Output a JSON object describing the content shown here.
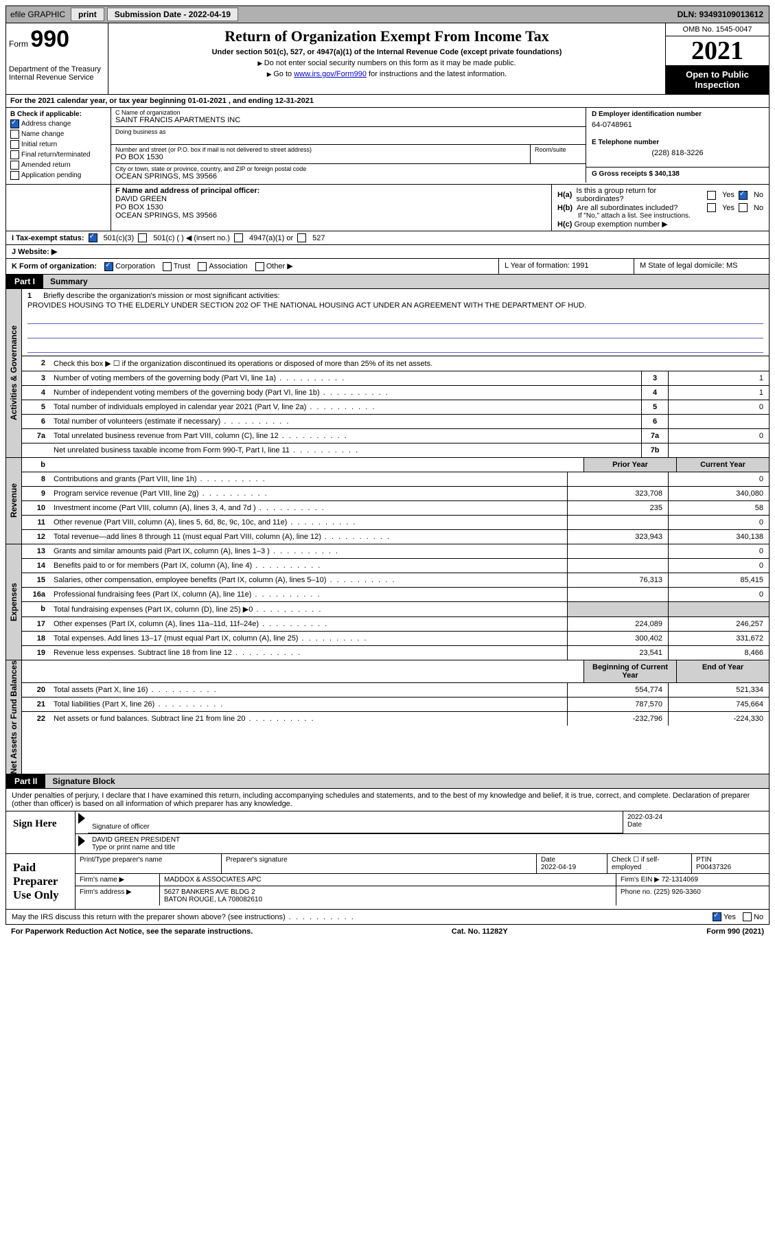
{
  "toolbar": {
    "efile_label": "efile GRAPHIC",
    "print_btn": "print",
    "submission_label": "Submission Date - 2022-04-19",
    "dln": "DLN: 93493109013612"
  },
  "header": {
    "form_word": "Form",
    "form_number": "990",
    "dept": "Department of the Treasury",
    "irs": "Internal Revenue Service",
    "title": "Return of Organization Exempt From Income Tax",
    "subtitle": "Under section 501(c), 527, or 4947(a)(1) of the Internal Revenue Code (except private foundations)",
    "note1": "Do not enter social security numbers on this form as it may be made public.",
    "note2_pre": "Go to ",
    "note2_link": "www.irs.gov/Form990",
    "note2_post": " for instructions and the latest information.",
    "omb": "OMB No. 1545-0047",
    "year": "2021",
    "open_public": "Open to Public Inspection"
  },
  "line_a": "For the 2021 calendar year, or tax year beginning 01-01-2021    , and ending 12-31-2021",
  "box_b": {
    "header": "B Check if applicable:",
    "items": [
      {
        "label": "Address change",
        "checked": true
      },
      {
        "label": "Name change",
        "checked": false
      },
      {
        "label": "Initial return",
        "checked": false
      },
      {
        "label": "Final return/terminated",
        "checked": false
      },
      {
        "label": "Amended return",
        "checked": false
      },
      {
        "label": "Application pending",
        "checked": false
      }
    ]
  },
  "box_c": {
    "name_label": "C Name of organization",
    "name": "SAINT FRANCIS APARTMENTS INC",
    "dba_label": "Doing business as",
    "dba": "",
    "street_label": "Number and street (or P.O. box if mail is not delivered to street address)",
    "room_label": "Room/suite",
    "street": "PO BOX 1530",
    "city_label": "City or town, state or province, country, and ZIP or foreign postal code",
    "city": "OCEAN SPRINGS, MS  39566"
  },
  "box_d": {
    "label": "D Employer identification number",
    "value": "64-0748961"
  },
  "box_e": {
    "label": "E Telephone number",
    "value": "(228) 818-3226"
  },
  "box_g": {
    "label": "G Gross receipts $ 340,138"
  },
  "box_f": {
    "label": "F Name and address of principal officer:",
    "name": "DAVID GREEN",
    "addr1": "PO BOX 1530",
    "addr2": "OCEAN SPRINGS, MS  39566"
  },
  "box_h": {
    "ha_label": "H(a)",
    "ha_text": "Is this a group return for subordinates?",
    "ha_yes": "Yes",
    "ha_no": "No",
    "hb_label": "H(b)",
    "hb_text": "Are all subordinates included?",
    "hb_note": "If \"No,\" attach a list. See instructions.",
    "hc_label": "H(c)",
    "hc_text": "Group exemption number ▶"
  },
  "box_i": {
    "label": "I Tax-exempt status:",
    "opt1": "501(c)(3)",
    "opt2": "501(c) (  ) ◀ (insert no.)",
    "opt3": "4947(a)(1) or",
    "opt4": "527"
  },
  "box_j": {
    "label": "J  Website: ▶"
  },
  "box_k": {
    "label": "K Form of organization:",
    "opts": [
      "Corporation",
      "Trust",
      "Association",
      "Other ▶"
    ]
  },
  "box_l": {
    "label": "L Year of formation: 1991"
  },
  "box_m": {
    "label": "M State of legal domicile: MS"
  },
  "part1": {
    "tab": "Part I",
    "title": "Summary",
    "line1_label": "Briefly describe the organization's mission or most significant activities:",
    "line1_num": "1",
    "mission": "PROVIDES HOUSING TO THE ELDERLY UNDER SECTION 202 OF THE NATIONAL HOUSING ACT UNDER AN AGREEMENT WITH THE DEPARTMENT OF HUD.",
    "line2": "Check this box ▶ ☐ if the organization discontinued its operations or disposed of more than 25% of its net assets.",
    "vtab_gov": "Activities & Governance",
    "vtab_rev": "Revenue",
    "vtab_exp": "Expenses",
    "vtab_net": "Net Assets or Fund Balances",
    "prior_year": "Prior Year",
    "current_year": "Current Year",
    "boy": "Beginning of Current Year",
    "eoy": "End of Year",
    "gov_lines": [
      {
        "n": "3",
        "t": "Number of voting members of the governing body (Part VI, line 1a)",
        "box": "3",
        "v": "1"
      },
      {
        "n": "4",
        "t": "Number of independent voting members of the governing body (Part VI, line 1b)",
        "box": "4",
        "v": "1"
      },
      {
        "n": "5",
        "t": "Total number of individuals employed in calendar year 2021 (Part V, line 2a)",
        "box": "5",
        "v": "0"
      },
      {
        "n": "6",
        "t": "Total number of volunteers (estimate if necessary)",
        "box": "6",
        "v": ""
      },
      {
        "n": "7a",
        "t": "Total unrelated business revenue from Part VIII, column (C), line 12",
        "box": "7a",
        "v": "0"
      },
      {
        "n": "",
        "t": "Net unrelated business taxable income from Form 990-T, Part I, line 11",
        "box": "7b",
        "v": ""
      }
    ],
    "rev_lines": [
      {
        "n": "8",
        "t": "Contributions and grants (Part VIII, line 1h)",
        "p": "",
        "c": "0"
      },
      {
        "n": "9",
        "t": "Program service revenue (Part VIII, line 2g)",
        "p": "323,708",
        "c": "340,080"
      },
      {
        "n": "10",
        "t": "Investment income (Part VIII, column (A), lines 3, 4, and 7d )",
        "p": "235",
        "c": "58"
      },
      {
        "n": "11",
        "t": "Other revenue (Part VIII, column (A), lines 5, 6d, 8c, 9c, 10c, and 11e)",
        "p": "",
        "c": "0"
      },
      {
        "n": "12",
        "t": "Total revenue—add lines 8 through 11 (must equal Part VIII, column (A), line 12)",
        "p": "323,943",
        "c": "340,138"
      }
    ],
    "exp_lines": [
      {
        "n": "13",
        "t": "Grants and similar amounts paid (Part IX, column (A), lines 1–3 )",
        "p": "",
        "c": "0"
      },
      {
        "n": "14",
        "t": "Benefits paid to or for members (Part IX, column (A), line 4)",
        "p": "",
        "c": "0"
      },
      {
        "n": "15",
        "t": "Salaries, other compensation, employee benefits (Part IX, column (A), lines 5–10)",
        "p": "76,313",
        "c": "85,415"
      },
      {
        "n": "16a",
        "t": "Professional fundraising fees (Part IX, column (A), line 11e)",
        "p": "",
        "c": "0"
      },
      {
        "n": "b",
        "t": "Total fundraising expenses (Part IX, column (D), line 25) ▶0",
        "p": "shade",
        "c": "shade"
      },
      {
        "n": "17",
        "t": "Other expenses (Part IX, column (A), lines 11a–11d, 11f–24e)",
        "p": "224,089",
        "c": "246,257"
      },
      {
        "n": "18",
        "t": "Total expenses. Add lines 13–17 (must equal Part IX, column (A), line 25)",
        "p": "300,402",
        "c": "331,672"
      },
      {
        "n": "19",
        "t": "Revenue less expenses. Subtract line 18 from line 12",
        "p": "23,541",
        "c": "8,466"
      }
    ],
    "net_lines": [
      {
        "n": "20",
        "t": "Total assets (Part X, line 16)",
        "p": "554,774",
        "c": "521,334"
      },
      {
        "n": "21",
        "t": "Total liabilities (Part X, line 26)",
        "p": "787,570",
        "c": "745,664"
      },
      {
        "n": "22",
        "t": "Net assets or fund balances. Subtract line 21 from line 20",
        "p": "-232,796",
        "c": "-224,330"
      }
    ]
  },
  "part2": {
    "tab": "Part II",
    "title": "Signature Block",
    "declaration": "Under penalties of perjury, I declare that I have examined this return, including accompanying schedules and statements, and to the best of my knowledge and belief, it is true, correct, and complete. Declaration of preparer (other than officer) is based on all information of which preparer has any knowledge.",
    "sign_here": "Sign Here",
    "sig_officer": "Signature of officer",
    "sig_date": "2022-03-24",
    "date_lbl": "Date",
    "officer_name": "DAVID GREEN PRESIDENT",
    "officer_name_lbl": "Type or print name and title",
    "paid_prep": "Paid Preparer Use Only",
    "prep_name_lbl": "Print/Type preparer's name",
    "prep_sig_lbl": "Preparer's signature",
    "prep_date_lbl": "Date",
    "prep_date": "2022-04-19",
    "check_self": "Check ☐ if self-employed",
    "ptin_lbl": "PTIN",
    "ptin": "P00437326",
    "firm_name_lbl": "Firm's name    ▶",
    "firm_name": "MADDOX & ASSOCIATES APC",
    "firm_ein_lbl": "Firm's EIN ▶",
    "firm_ein": "72-1314069",
    "firm_addr_lbl": "Firm's address ▶",
    "firm_addr1": "5627 BANKERS AVE BLDG 2",
    "firm_addr2": "BATON ROUGE, LA  708082610",
    "phone_lbl": "Phone no.",
    "phone": "(225) 926-3360",
    "discuss": "May the IRS discuss this return with the preparer shown above? (see instructions)",
    "yes": "Yes",
    "no": "No"
  },
  "footer": {
    "pra": "For Paperwork Reduction Act Notice, see the separate instructions.",
    "cat": "Cat. No. 11282Y",
    "form": "Form 990 (2021)"
  }
}
